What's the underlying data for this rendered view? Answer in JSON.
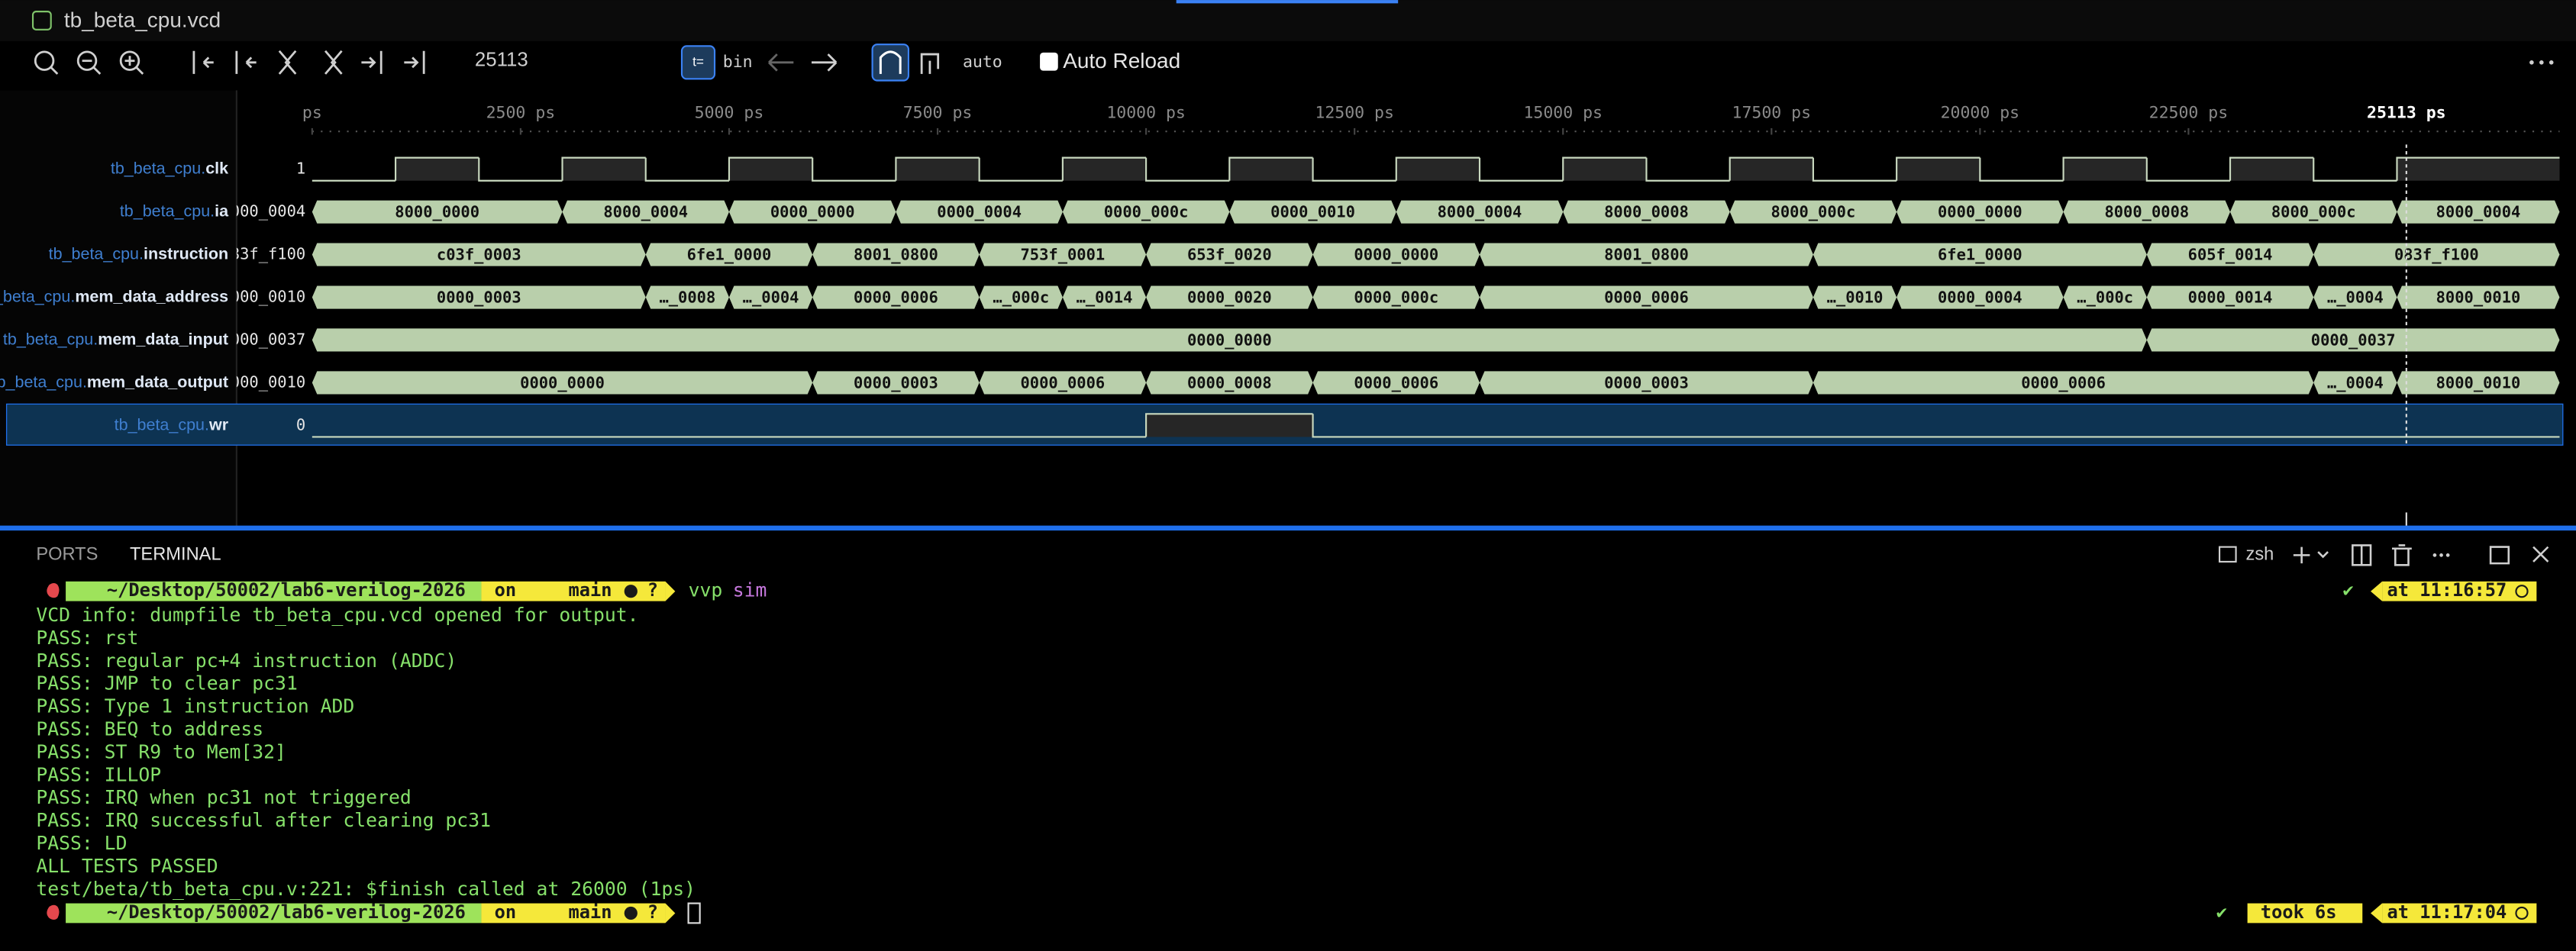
{
  "tab": {
    "title": "tb_beta_cpu.vcd"
  },
  "toolbar": {
    "cursor": 25113,
    "format": "bin",
    "mode": "auto",
    "auto_reload": "Auto Reload"
  },
  "timeline": {
    "view": [
      0,
      26950
    ],
    "ticks": [
      {
        "value": 0,
        "label": "ps"
      },
      {
        "value": 2500,
        "label": "2500 ps"
      },
      {
        "value": 5000,
        "label": "5000 ps"
      },
      {
        "value": 7500,
        "label": "7500 ps"
      },
      {
        "value": 10000,
        "label": "10000 ps"
      },
      {
        "value": 12500,
        "label": "12500 ps"
      },
      {
        "value": 15000,
        "label": "15000 ps"
      },
      {
        "value": 17500,
        "label": "17500 ps"
      },
      {
        "value": 20000,
        "label": "20000 ps"
      },
      {
        "value": 22500,
        "label": "22500 ps"
      }
    ],
    "cursor_label": "25113 ps"
  },
  "signals": [
    {
      "prefix": "tb_beta_cpu.",
      "name": "clk",
      "value": "1",
      "changes": [
        [
          0,
          0
        ],
        [
          1000,
          1
        ],
        [
          2000,
          0
        ],
        [
          3000,
          1
        ],
        [
          4000,
          0
        ],
        [
          5000,
          1
        ],
        [
          6000,
          0
        ],
        [
          7000,
          1
        ],
        [
          8000,
          0
        ],
        [
          9000,
          1
        ],
        [
          10000,
          0
        ],
        [
          11000,
          1
        ],
        [
          12000,
          0
        ],
        [
          13000,
          1
        ],
        [
          14000,
          0
        ],
        [
          15000,
          1
        ],
        [
          16000,
          0
        ],
        [
          17000,
          1
        ],
        [
          18000,
          0
        ],
        [
          19000,
          1
        ],
        [
          20000,
          0
        ],
        [
          21000,
          1
        ],
        [
          22000,
          0
        ],
        [
          23000,
          1
        ],
        [
          24000,
          0
        ],
        [
          25000,
          1
        ]
      ]
    },
    {
      "prefix": "tb_beta_cpu.",
      "name": "ia",
      "value": "000_0004",
      "changes": [
        [
          0,
          "8000_0000"
        ],
        [
          3000,
          "8000_0004"
        ],
        [
          5000,
          "0000_0000"
        ],
        [
          7000,
          "0000_0004"
        ],
        [
          9000,
          "0000_000c"
        ],
        [
          11000,
          "0000_0010"
        ],
        [
          13000,
          "8000_0004"
        ],
        [
          15000,
          "8000_0008"
        ],
        [
          17000,
          "8000_000c"
        ],
        [
          19000,
          "0000_0000"
        ],
        [
          21000,
          "8000_0008"
        ],
        [
          23000,
          "8000_000c"
        ],
        [
          25000,
          "8000_0004"
        ]
      ]
    },
    {
      "prefix": "tb_beta_cpu.",
      "name": "instruction",
      "value": "83f_f100",
      "changes": [
        [
          0,
          "c03f_0003"
        ],
        [
          4000,
          "6fe1_0000"
        ],
        [
          6000,
          "8001_0800"
        ],
        [
          8000,
          "753f_0001"
        ],
        [
          10000,
          "653f_0020"
        ],
        [
          12000,
          "0000_0000"
        ],
        [
          14000,
          "8001_0800"
        ],
        [
          18000,
          "6fe1_0000"
        ],
        [
          22000,
          "605f_0014"
        ],
        [
          24000,
          "083f_f100"
        ]
      ]
    },
    {
      "prefix": "tb_beta_cpu.",
      "name": "mem_data_address",
      "value": "000_0010",
      "changes": [
        [
          0,
          "0000_0003"
        ],
        [
          4000,
          "…_0008"
        ],
        [
          5000,
          "…_0004"
        ],
        [
          6000,
          "0000_0006"
        ],
        [
          8000,
          "…_000c"
        ],
        [
          9000,
          "…_0014"
        ],
        [
          10000,
          "0000_0020"
        ],
        [
          12000,
          "0000_000c"
        ],
        [
          14000,
          "0000_0006"
        ],
        [
          18000,
          "…_0010"
        ],
        [
          19000,
          "0000_0004"
        ],
        [
          21000,
          "…_000c"
        ],
        [
          22000,
          "0000_0014"
        ],
        [
          24000,
          "…_0004"
        ],
        [
          25000,
          "8000_0010"
        ]
      ]
    },
    {
      "prefix": "tb_beta_cpu.",
      "name": "mem_data_input",
      "value": "000_0037",
      "changes": [
        [
          0,
          "0000_0000"
        ],
        [
          22000,
          "0000_0037"
        ]
      ]
    },
    {
      "prefix": "tb_beta_cpu.",
      "name": "mem_data_output",
      "value": "000_0010",
      "changes": [
        [
          0,
          "0000_0000"
        ],
        [
          6000,
          "0000_0003"
        ],
        [
          8000,
          "0000_0006"
        ],
        [
          10000,
          "0000_0008"
        ],
        [
          12000,
          "0000_0006"
        ],
        [
          14000,
          "0000_0003"
        ],
        [
          18000,
          "0000_0006"
        ],
        [
          24000,
          "…_0004"
        ],
        [
          25000,
          "8000_0010"
        ]
      ]
    },
    {
      "prefix": "tb_beta_cpu.",
      "name": "wr",
      "value": "0",
      "changes": [
        [
          0,
          0
        ],
        [
          10000,
          1
        ],
        [
          12000,
          0
        ]
      ]
    }
  ],
  "terminal": {
    "tabs": [
      "PORTS",
      "TERMINAL"
    ],
    "shell": "zsh",
    "prompts": [
      {
        "path": "~/Desktop/50002/lab6-verilog-2026",
        "on": "on",
        "branch": "main",
        "status": "?",
        "command": "vvp",
        "args": "sim",
        "right": "at 11:16:57"
      },
      {
        "path": "~/Desktop/50002/lab6-verilog-2026",
        "on": "on",
        "branch": "main",
        "status": "?",
        "took": "took 6s",
        "right": "at 11:17:04"
      }
    ],
    "output": [
      "VCD info: dumpfile tb_beta_cpu.vcd opened for output.",
      "PASS: rst",
      "PASS: regular pc+4 instruction (ADDC)",
      "PASS: JMP to clear pc31",
      "PASS: Type 1 instruction ADD",
      "PASS: BEQ to address",
      "PASS: ST R9 to Mem[32]",
      "PASS: ILLOP",
      "PASS: IRQ when pc31 not triggered",
      "PASS: IRQ successful after clearing pc31",
      "PASS: LD",
      "ALL TESTS PASSED",
      "test/beta/tb_beta_cpu.v:221: $finish called at 26000 (1ps)"
    ]
  }
}
